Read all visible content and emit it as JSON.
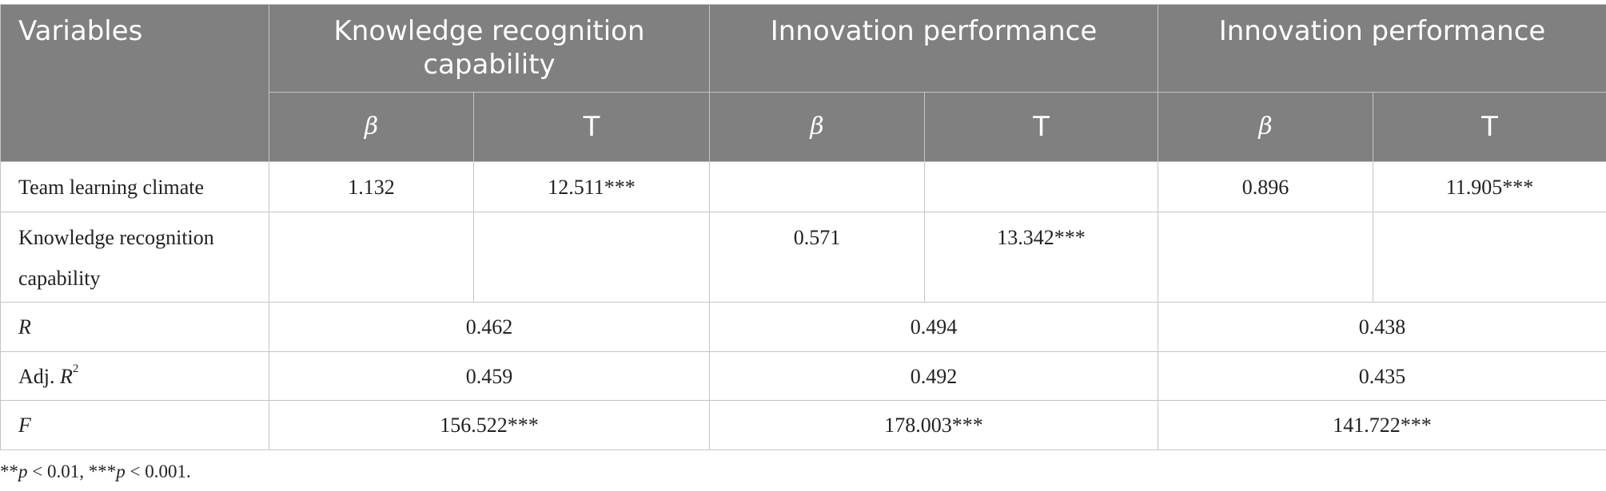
{
  "table": {
    "header": {
      "variables": "Variables",
      "groups": [
        "Knowledge recognition capability",
        "Innovation performance",
        "Innovation performance"
      ],
      "subheaders": [
        "β",
        "T",
        "β",
        "T",
        "β",
        "T"
      ]
    },
    "rows": [
      {
        "label": "Team learning climate",
        "cells": [
          "1.132",
          "12.511***",
          null,
          null,
          "0.896",
          "11.905***"
        ]
      },
      {
        "label": "Knowledge recognition capability",
        "cells": [
          null,
          null,
          "0.571",
          "13.342***",
          null,
          null
        ]
      },
      {
        "label": "R",
        "cells": [
          "0.462",
          "0.494",
          "0.438"
        ]
      },
      {
        "label": [
          "Adj. ",
          "R",
          "2"
        ],
        "cells": [
          "0.459",
          "0.492",
          "0.435"
        ]
      },
      {
        "label": "F",
        "cells": [
          "156.522***",
          "178.003***",
          "141.722***"
        ]
      }
    ]
  },
  "footnote": [
    "**",
    "p",
    " < 0.01, ***",
    "p",
    " < 0.001."
  ]
}
